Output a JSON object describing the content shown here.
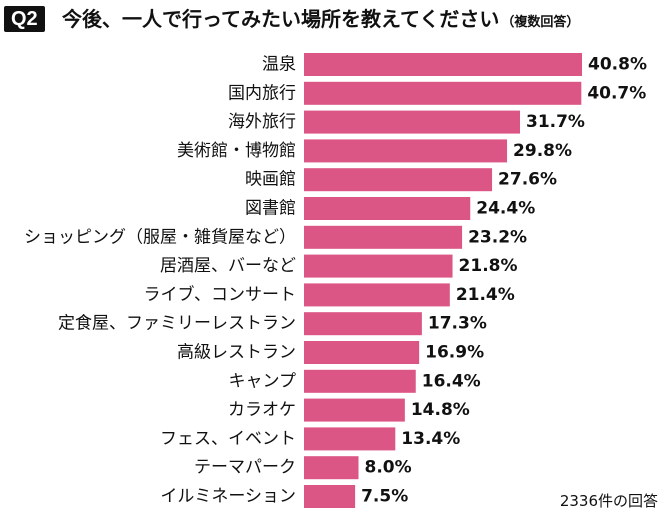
{
  "header": {
    "badge": "Q2",
    "title": "今後、一人で行ってみたい場所を教えてください",
    "subtitle": "（複数回答）"
  },
  "footnote": "2336件の回答",
  "colors": {
    "bar": "#db5585",
    "text": "#111111"
  },
  "chart_data": {
    "type": "bar",
    "orientation": "horizontal",
    "title": "今後、一人で行ってみたい場所を教えてください",
    "subtitle": "（複数回答）",
    "categories": [
      "温泉",
      "国内旅行",
      "海外旅行",
      "美術館・博物館",
      "映画館",
      "図書館",
      "ショッピング（服屋・雑貨屋など）",
      "居酒屋、バーなど",
      "ライブ、コンサート",
      "定食屋、ファミリーレストラン",
      "高級レストラン",
      "キャンプ",
      "カラオケ",
      "フェス、イベント",
      "テーマパーク",
      "イルミネーション"
    ],
    "values": [
      40.8,
      40.7,
      31.7,
      29.8,
      27.6,
      24.4,
      23.2,
      21.8,
      21.4,
      17.3,
      16.9,
      16.4,
      14.8,
      13.4,
      8.0,
      7.5
    ],
    "value_labels": [
      "40.8%",
      "40.7%",
      "31.7%",
      "29.8%",
      "27.6%",
      "24.4%",
      "23.2%",
      "21.8%",
      "21.4%",
      "17.3%",
      "16.9%",
      "16.4%",
      "14.8%",
      "13.4%",
      "8.0%",
      "7.5%"
    ],
    "xlim": [
      0,
      40.8
    ],
    "unit": "%",
    "grid": false,
    "legend": "none"
  }
}
